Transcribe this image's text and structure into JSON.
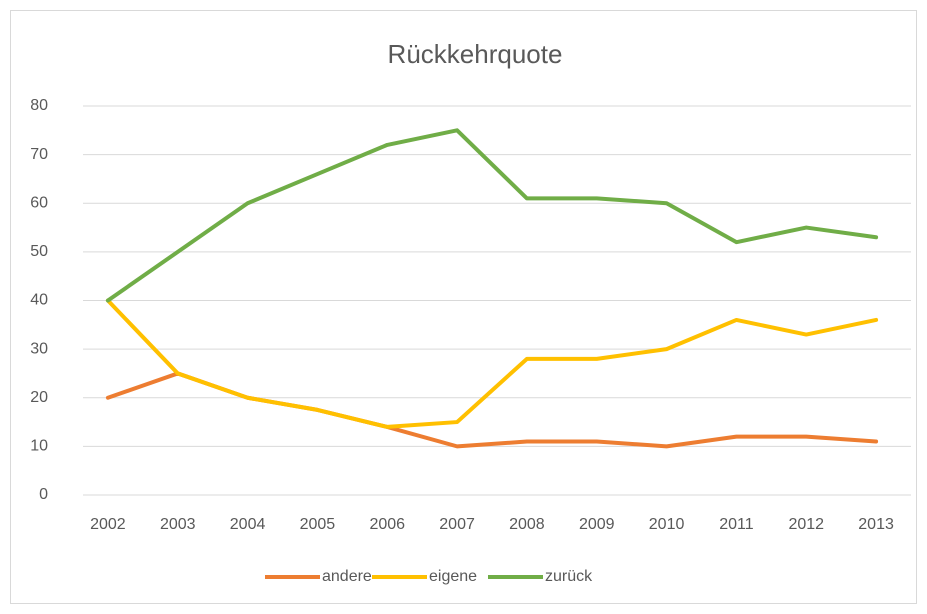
{
  "chart_data": {
    "type": "line",
    "title": "Rückkehrquote",
    "categories": [
      "2002",
      "2003",
      "2004",
      "2005",
      "2006",
      "2007",
      "2008",
      "2009",
      "2010",
      "2011",
      "2012",
      "2013"
    ],
    "series": [
      {
        "name": "andere",
        "color": "#ed7d31",
        "values": [
          20,
          25,
          20,
          17.5,
          14,
          10,
          11,
          11,
          10,
          12,
          12,
          11
        ]
      },
      {
        "name": "eigene",
        "color": "#ffc000",
        "values": [
          40,
          25,
          20,
          17.5,
          14,
          15,
          28,
          28,
          30,
          36,
          33,
          36
        ]
      },
      {
        "name": "zurück",
        "color": "#70ad47",
        "values": [
          40,
          50,
          60,
          66,
          72,
          75,
          61,
          61,
          60,
          52,
          55,
          53
        ]
      }
    ],
    "ylim": [
      0,
      80
    ],
    "yticks": [
      0,
      10,
      20,
      30,
      40,
      50,
      60,
      70,
      80
    ],
    "grid": true,
    "legend": "bottom"
  }
}
